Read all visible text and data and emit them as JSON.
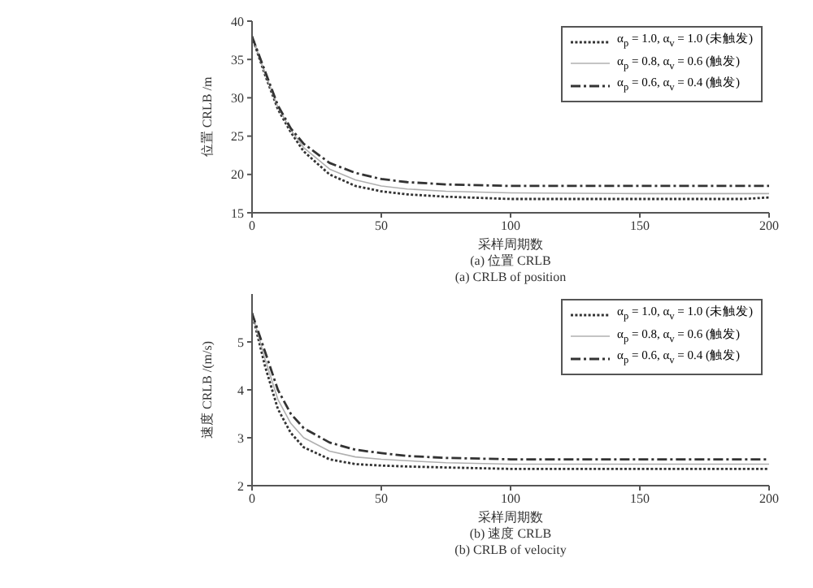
{
  "chart_data": [
    {
      "type": "line",
      "ylabel": "位置 CRLB /m",
      "xlabel": "采样周期数",
      "annotations": [
        "(a) 位置 CRLB",
        "(a) CRLB of position"
      ],
      "x": [
        0,
        5,
        10,
        15,
        20,
        30,
        40,
        50,
        60,
        75,
        100,
        150,
        190,
        200
      ],
      "xlim": [
        0,
        200
      ],
      "xticks": [
        0,
        50,
        100,
        150,
        200
      ],
      "ylim": [
        15,
        40
      ],
      "yticks": [
        15,
        20,
        25,
        30,
        35,
        40
      ],
      "legend": "top right",
      "marker": "none",
      "series": [
        {
          "name": "α$_{p}$ = 1.0, α$_{v}$ = 1.0 (未触发)",
          "color": "#333333",
          "line_style": "dotted",
          "values": [
            38,
            33,
            28.5,
            25.5,
            23,
            20,
            18.5,
            17.8,
            17.4,
            17.1,
            16.8,
            16.8,
            16.8,
            17.0
          ]
        },
        {
          "name": "α$_{p}$ = 0.8, α$_{v}$ = 0.6 (触发)",
          "color": "#b0b0b0",
          "line_style": "solid",
          "values": [
            38,
            33.2,
            28.8,
            25.8,
            23.5,
            20.7,
            19.3,
            18.5,
            18.1,
            17.8,
            17.6,
            17.5,
            17.5,
            17.5
          ]
        },
        {
          "name": "α$_{p}$ = 0.6, α$_{v}$ = 0.4 (触发)",
          "color": "#333333",
          "line_style": "dashed",
          "values": [
            38,
            33.5,
            29,
            26,
            24,
            21.5,
            20.2,
            19.4,
            19,
            18.7,
            18.5,
            18.5,
            18.5,
            18.5
          ]
        }
      ]
    },
    {
      "type": "line",
      "ylabel": "速度 CRLB /(m/s)",
      "xlabel": "采样周期数",
      "annotations": [
        "(b) 速度 CRLB",
        "(b) CRLB of velocity"
      ],
      "x": [
        0,
        5,
        10,
        15,
        20,
        30,
        40,
        50,
        60,
        75,
        100,
        150,
        190,
        200
      ],
      "xlim": [
        0,
        200
      ],
      "xticks": [
        0,
        50,
        100,
        150,
        200
      ],
      "ylim": [
        2,
        6
      ],
      "yticks": [
        2,
        3,
        4,
        5
      ],
      "legend": "top right",
      "marker": "none",
      "series": [
        {
          "name": "α$_{p}$ = 1.0, α$_{v}$ = 1.0 (未触发)",
          "color": "#333333",
          "line_style": "dotted",
          "values": [
            5.6,
            4.5,
            3.6,
            3.1,
            2.8,
            2.55,
            2.45,
            2.42,
            2.4,
            2.38,
            2.35,
            2.35,
            2.35,
            2.35
          ]
        },
        {
          "name": "α$_{p}$ = 0.8, α$_{v}$ = 0.6 (触发)",
          "color": "#b0b0b0",
          "line_style": "solid",
          "values": [
            5.6,
            4.65,
            3.8,
            3.3,
            3.0,
            2.72,
            2.6,
            2.55,
            2.52,
            2.48,
            2.45,
            2.45,
            2.45,
            2.45
          ]
        },
        {
          "name": "α$_{p}$ = 0.6, α$_{v}$ = 0.4 (触发)",
          "color": "#333333",
          "line_style": "dashed",
          "values": [
            5.6,
            4.8,
            4.0,
            3.5,
            3.2,
            2.9,
            2.75,
            2.68,
            2.62,
            2.58,
            2.55,
            2.55,
            2.55,
            2.55
          ]
        }
      ]
    }
  ]
}
